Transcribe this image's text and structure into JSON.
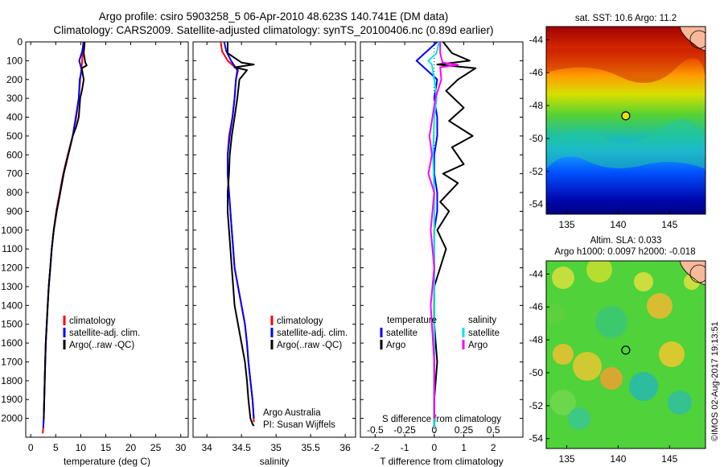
{
  "header": {
    "line1": "Argo profile: csiro 5903258_5 06-Apr-2010 48.623S 140.741E (DM data)",
    "line2": "Climatology: CARS2009. Satellite-adjusted climatology: synTS_20100406.nc (0.89d earlier)"
  },
  "colors": {
    "climatology": "#ff0000",
    "satellite": "#0000ff",
    "argo": "#000000",
    "sal_satellite": "#00e5e5",
    "sal_argo": "#ff00ff",
    "land": "#f7b99a"
  },
  "chart_data": [
    {
      "id": "temperature",
      "type": "line",
      "xlabel": "temperature (deg C)",
      "ylabel": "",
      "xlim": [
        -1,
        31.5
      ],
      "ylim": [
        2100,
        0
      ],
      "xticks": [
        0,
        5,
        10,
        15,
        20,
        25,
        30
      ],
      "yticks": [
        0,
        100,
        200,
        300,
        400,
        500,
        600,
        700,
        800,
        900,
        1000,
        1100,
        1200,
        1300,
        1400,
        1500,
        1600,
        1700,
        1800,
        1900,
        2000
      ],
      "legend": [
        "climatology",
        "satellite-adj. clim.",
        "Argo(..raw -QC)"
      ],
      "legend_position": "bottom-right",
      "series": [
        {
          "name": "climatology",
          "x": [
            10.5,
            10.4,
            10.3,
            10.1,
            9.9,
            9.6,
            9.1,
            8.4,
            7.4,
            6.5,
            5.8,
            5.1,
            4.6,
            4.2,
            3.9,
            3.6,
            3.4,
            3.2,
            3.0,
            2.9,
            2.8,
            2.7,
            2.6,
            2.5,
            2.4
          ],
          "y": [
            0,
            50,
            100,
            150,
            200,
            300,
            400,
            500,
            600,
            700,
            800,
            900,
            1000,
            1100,
            1200,
            1300,
            1400,
            1500,
            1600,
            1700,
            1800,
            1900,
            2000,
            2050,
            2080
          ]
        },
        {
          "name": "satellite-adj. clim.",
          "x": [
            10.6,
            10.3,
            9.7,
            10.2,
            9.8,
            9.6,
            9.0,
            8.4,
            7.5,
            6.6,
            5.9,
            5.2,
            4.6,
            4.2,
            3.9,
            3.6,
            3.4,
            3.2,
            3.0,
            2.9,
            2.8,
            2.7,
            2.6,
            2.5
          ],
          "y": [
            0,
            50,
            100,
            150,
            200,
            300,
            400,
            500,
            600,
            700,
            800,
            900,
            1000,
            1100,
            1200,
            1300,
            1400,
            1500,
            1600,
            1700,
            1800,
            1900,
            2000,
            2050
          ]
        },
        {
          "name": "Argo(..raw -QC)",
          "x": [
            10.8,
            10.6,
            10.9,
            11.2,
            10.2,
            10.6,
            10.3,
            9.9,
            9.6,
            9.1,
            8.4,
            7.5,
            6.6,
            5.9,
            5.2,
            4.6,
            4.2,
            3.9,
            3.6,
            3.4,
            3.2,
            3.0,
            2.9,
            2.8,
            2.7,
            2.6
          ],
          "y": [
            0,
            60,
            110,
            125,
            140,
            200,
            250,
            300,
            400,
            450,
            500,
            600,
            700,
            800,
            900,
            1000,
            1100,
            1200,
            1300,
            1400,
            1500,
            1600,
            1700,
            1800,
            1900,
            2000
          ]
        }
      ]
    },
    {
      "id": "salinity",
      "type": "line",
      "xlabel": "salinity",
      "ylabel": "",
      "xlim": [
        33.8,
        36.15
      ],
      "ylim": [
        2100,
        0
      ],
      "xticks": [
        34,
        34.5,
        35,
        35.5,
        36
      ],
      "legend": [
        "climatology",
        "satellite-adj. clim.",
        "Argo(..raw -QC)"
      ],
      "legend_position": "bottom-right",
      "annotation": [
        "Argo Australia",
        "PI: Susan Wijffels"
      ],
      "series": [
        {
          "name": "climatology",
          "x": [
            34.2,
            34.22,
            34.3,
            34.45,
            34.42,
            34.4,
            34.37,
            34.32,
            34.3,
            34.3,
            34.32,
            34.34,
            34.36,
            34.38,
            34.4,
            34.45,
            34.5,
            34.55,
            34.58,
            34.6,
            34.63,
            34.66,
            34.68
          ],
          "y": [
            0,
            50,
            100,
            150,
            200,
            300,
            400,
            500,
            600,
            700,
            800,
            900,
            1000,
            1100,
            1200,
            1300,
            1400,
            1500,
            1600,
            1700,
            1800,
            1900,
            2020
          ]
        },
        {
          "name": "satellite-adj. clim.",
          "x": [
            34.25,
            34.28,
            34.35,
            34.44,
            34.42,
            34.4,
            34.37,
            34.33,
            34.3,
            34.3,
            34.32,
            34.34,
            34.36,
            34.38,
            34.4,
            34.45,
            34.5,
            34.55,
            34.58,
            34.6,
            34.63,
            34.66,
            34.68
          ],
          "y": [
            0,
            50,
            100,
            150,
            200,
            300,
            400,
            500,
            600,
            700,
            800,
            900,
            1000,
            1100,
            1200,
            1300,
            1400,
            1500,
            1600,
            1700,
            1800,
            1900,
            2000
          ]
        },
        {
          "name": "Argo(..raw -QC)",
          "x": [
            34.3,
            34.3,
            34.5,
            34.68,
            34.4,
            34.58,
            34.47,
            34.44,
            34.4,
            34.36,
            34.33,
            34.32,
            34.3,
            34.3,
            34.32,
            34.34,
            34.36,
            34.38,
            34.4,
            34.45,
            34.5,
            34.55,
            34.58,
            34.6,
            34.63,
            34.66,
            34.68
          ],
          "y": [
            0,
            60,
            110,
            120,
            135,
            150,
            200,
            300,
            400,
            500,
            600,
            700,
            800,
            900,
            1000,
            1100,
            1200,
            1300,
            1400,
            1500,
            1600,
            1700,
            1800,
            1900,
            2000,
            2030,
            2040
          ]
        }
      ]
    },
    {
      "id": "difference",
      "type": "line",
      "xlabel": "T difference from climatology",
      "xlabel2": "S difference from climatology",
      "xlim": [
        -2.5,
        3
      ],
      "xlim_s": [
        -0.625,
        0.75
      ],
      "ylim": [
        2100,
        0
      ],
      "xticks": [
        -2,
        -1,
        0,
        1,
        2
      ],
      "xticks_s": [
        "-0.5",
        "-0.25",
        "0",
        "0.25",
        "0.5"
      ],
      "legend_temperature_title": "temperature",
      "legend_salinity_title": "salinity",
      "legend": [
        "satellite",
        "Argo",
        "satellite",
        "Argo"
      ],
      "series": [
        {
          "name": "satellite",
          "x": [
            0.1,
            -0.6,
            0.1,
            0.0,
            0.1,
            0.1,
            0.0,
            0.0,
            0.1,
            0.1,
            0.0,
            0.0,
            0.0,
            0.0,
            0.0,
            0.0,
            0.0,
            0.0
          ],
          "y": [
            0,
            100,
            200,
            300,
            400,
            500,
            600,
            700,
            800,
            900,
            1000,
            1200,
            1400,
            1600,
            1800,
            1900,
            2000,
            2050
          ]
        },
        {
          "name": "Argo",
          "x": [
            0.3,
            0.6,
            1.2,
            0.1,
            1.4,
            0.8,
            0.4,
            1.0,
            0.5,
            1.3,
            0.6,
            1.0,
            0.3,
            0.8,
            0.2,
            0.5,
            0.1,
            0.4,
            0.0,
            0.0,
            0.1,
            0.0,
            0.0
          ],
          "y": [
            0,
            60,
            100,
            120,
            140,
            200,
            260,
            350,
            420,
            500,
            560,
            650,
            700,
            750,
            850,
            900,
            1000,
            1100,
            1300,
            1500,
            1700,
            1900,
            2050
          ]
        },
        {
          "name": "satellite",
          "x": [
            0.04,
            0.02,
            -0.05,
            -0.02,
            0.0,
            0.02,
            0.0,
            -0.01,
            0.0,
            0.0,
            0.0,
            0.0,
            0.0,
            0.0,
            0.0,
            0.0
          ],
          "y": [
            0,
            60,
            100,
            120,
            200,
            300,
            400,
            600,
            800,
            1000,
            1200,
            1400,
            1600,
            1800,
            2000,
            2050
          ]
        },
        {
          "name": "Argo",
          "x": [
            0.05,
            0.05,
            0.07,
            0.2,
            0.05,
            0.06,
            0.01,
            -0.04,
            -0.02,
            -0.05,
            0.0,
            -0.03,
            0.0,
            -0.03,
            0.0,
            0.0
          ],
          "y": [
            0,
            60,
            110,
            122,
            135,
            200,
            300,
            500,
            600,
            700,
            800,
            1000,
            1200,
            1400,
            1700,
            2000
          ]
        }
      ]
    },
    {
      "id": "sst_map",
      "type": "heatmap",
      "title": "sat. SST: 10.6  Argo: 11.2",
      "xlim": [
        133,
        148.5
      ],
      "ylim": [
        -54.6,
        -43.2
      ],
      "xticks": [
        135,
        140,
        145
      ],
      "yticks": [
        -44,
        -46,
        -48,
        -50,
        -52,
        -54
      ],
      "marker": {
        "lon": 140.741,
        "lat": -48.623
      }
    },
    {
      "id": "sla_map",
      "type": "heatmap",
      "title": "Altim. SLA: 0.033",
      "subtitle": "Argo h1000: 0.0097 h2000: -0.018",
      "xlim": [
        133,
        148.5
      ],
      "ylim": [
        -54.6,
        -43.2
      ],
      "xticks": [
        135,
        140,
        145
      ],
      "yticks": [
        -44,
        -46,
        -48,
        -50,
        -52,
        -54
      ],
      "marker": {
        "lon": 140.741,
        "lat": -48.623
      }
    }
  ],
  "credit": "©IMOS 02-Aug-2017 19:13:51"
}
